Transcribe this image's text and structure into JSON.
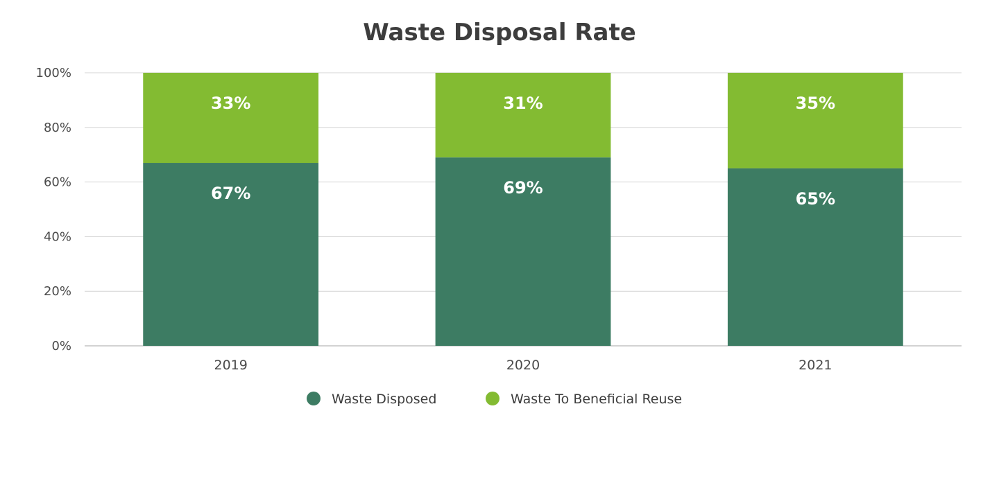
{
  "chart_data": {
    "type": "bar",
    "stacked": true,
    "title": "Waste Disposal Rate",
    "xlabel": "",
    "ylabel": "",
    "categories": [
      "2019",
      "2020",
      "2021"
    ],
    "series": [
      {
        "name": "Waste Disposed",
        "values": [
          67,
          69,
          65
        ],
        "labels": [
          "67%",
          "69%",
          "65%"
        ],
        "color": "#3d7c63"
      },
      {
        "name": "Waste To Beneficial Reuse",
        "values": [
          33,
          31,
          35
        ],
        "labels": [
          "33%",
          "31%",
          "35%"
        ],
        "color": "#83bb32"
      }
    ],
    "ylim": [
      0,
      100
    ],
    "y_ticks": [
      0,
      20,
      40,
      60,
      80,
      100
    ],
    "y_tick_labels": [
      "0%",
      "20%",
      "40%",
      "60%",
      "80%",
      "100%"
    ],
    "grid": true,
    "legend_position": "bottom"
  }
}
